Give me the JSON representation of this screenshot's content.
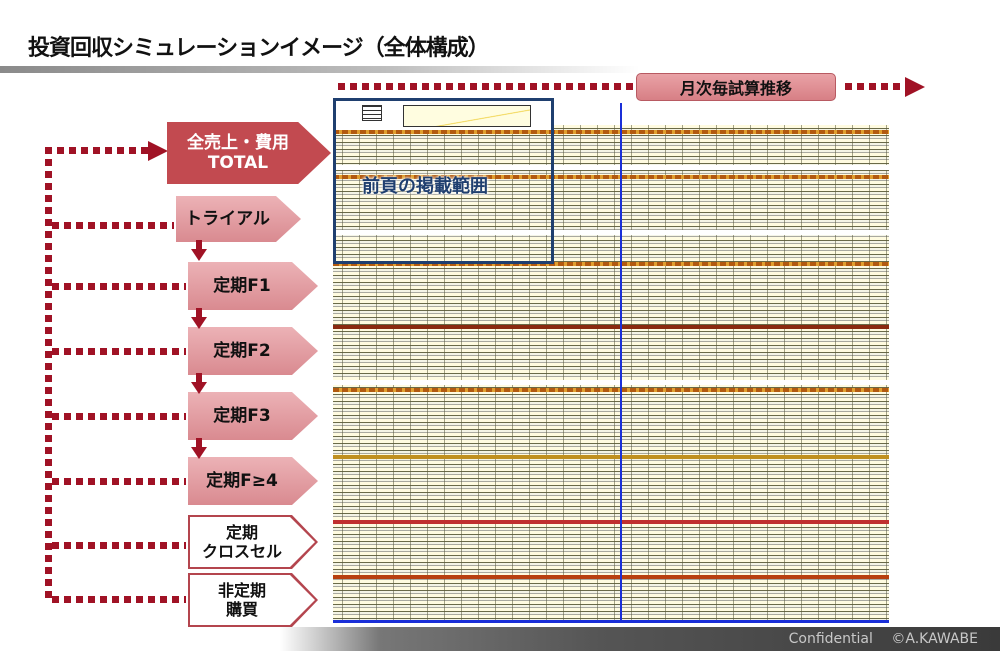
{
  "title": "投資回収シミュレーションイメージ（全体構成）",
  "timeline": {
    "label": "月次毎試算推移"
  },
  "range_label": "前頁の掲載範囲",
  "blocks": [
    {
      "label_line1": "全売上・費用",
      "label_line2": "TOTAL"
    },
    {
      "label_line1": "トライアル"
    },
    {
      "label_line1": "定期F1"
    },
    {
      "label_line1": "定期F2"
    },
    {
      "label_line1": "定期F3"
    },
    {
      "label_line1": "定期F≥4"
    },
    {
      "label_line1": "定期",
      "label_line2": "クロスセル"
    },
    {
      "label_line1": "非定期",
      "label_line2": "購買"
    }
  ],
  "footer": {
    "confidential": "Confidential",
    "copyright": "©A.KAWABE"
  },
  "colors": {
    "accent": "#a01225",
    "total_fill": "#c24a50",
    "block_fill": "#d98a90",
    "range_border": "#1f3f6f",
    "month_line": "#1a2fd8"
  }
}
